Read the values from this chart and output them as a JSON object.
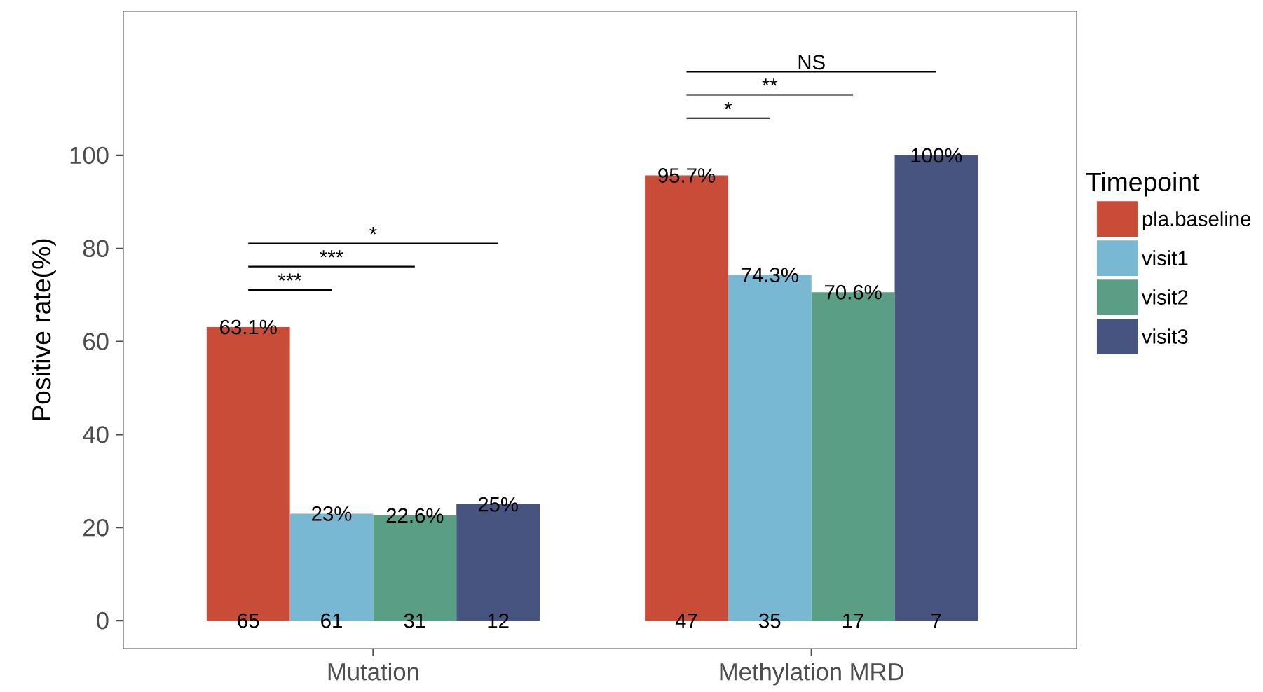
{
  "chart_data": {
    "type": "bar",
    "ylabel": "Positive rate(%)",
    "legend_title": "Timepoint",
    "legend": "right",
    "grid": false,
    "categories": [
      "Mutation",
      "Methylation MRD"
    ],
    "ylim": [
      -6,
      131
    ],
    "yticks": [
      0,
      20,
      40,
      60,
      80,
      100
    ],
    "series": [
      {
        "name": "pla.baseline",
        "color": "#c94c38",
        "values": [
          63.1,
          95.7
        ],
        "value_labels": [
          "63.1%",
          "95.7%"
        ]
      },
      {
        "name": "visit1",
        "color": "#79b8d3",
        "values": [
          23,
          74.3
        ],
        "value_labels": [
          "23%",
          "74.3%"
        ]
      },
      {
        "name": "visit2",
        "color": "#5a9e86",
        "values": [
          22.6,
          70.6
        ],
        "value_labels": [
          "22.6%",
          "70.6%"
        ]
      },
      {
        "name": "visit3",
        "color": "#46547f",
        "values": [
          25,
          100
        ],
        "value_labels": [
          "25%",
          "100%"
        ]
      }
    ],
    "annotations": [
      "65",
      "61",
      "31",
      "12",
      "***",
      "***",
      "*",
      "47",
      "35",
      "17",
      "7",
      "*",
      "**",
      "NS"
    ]
  }
}
